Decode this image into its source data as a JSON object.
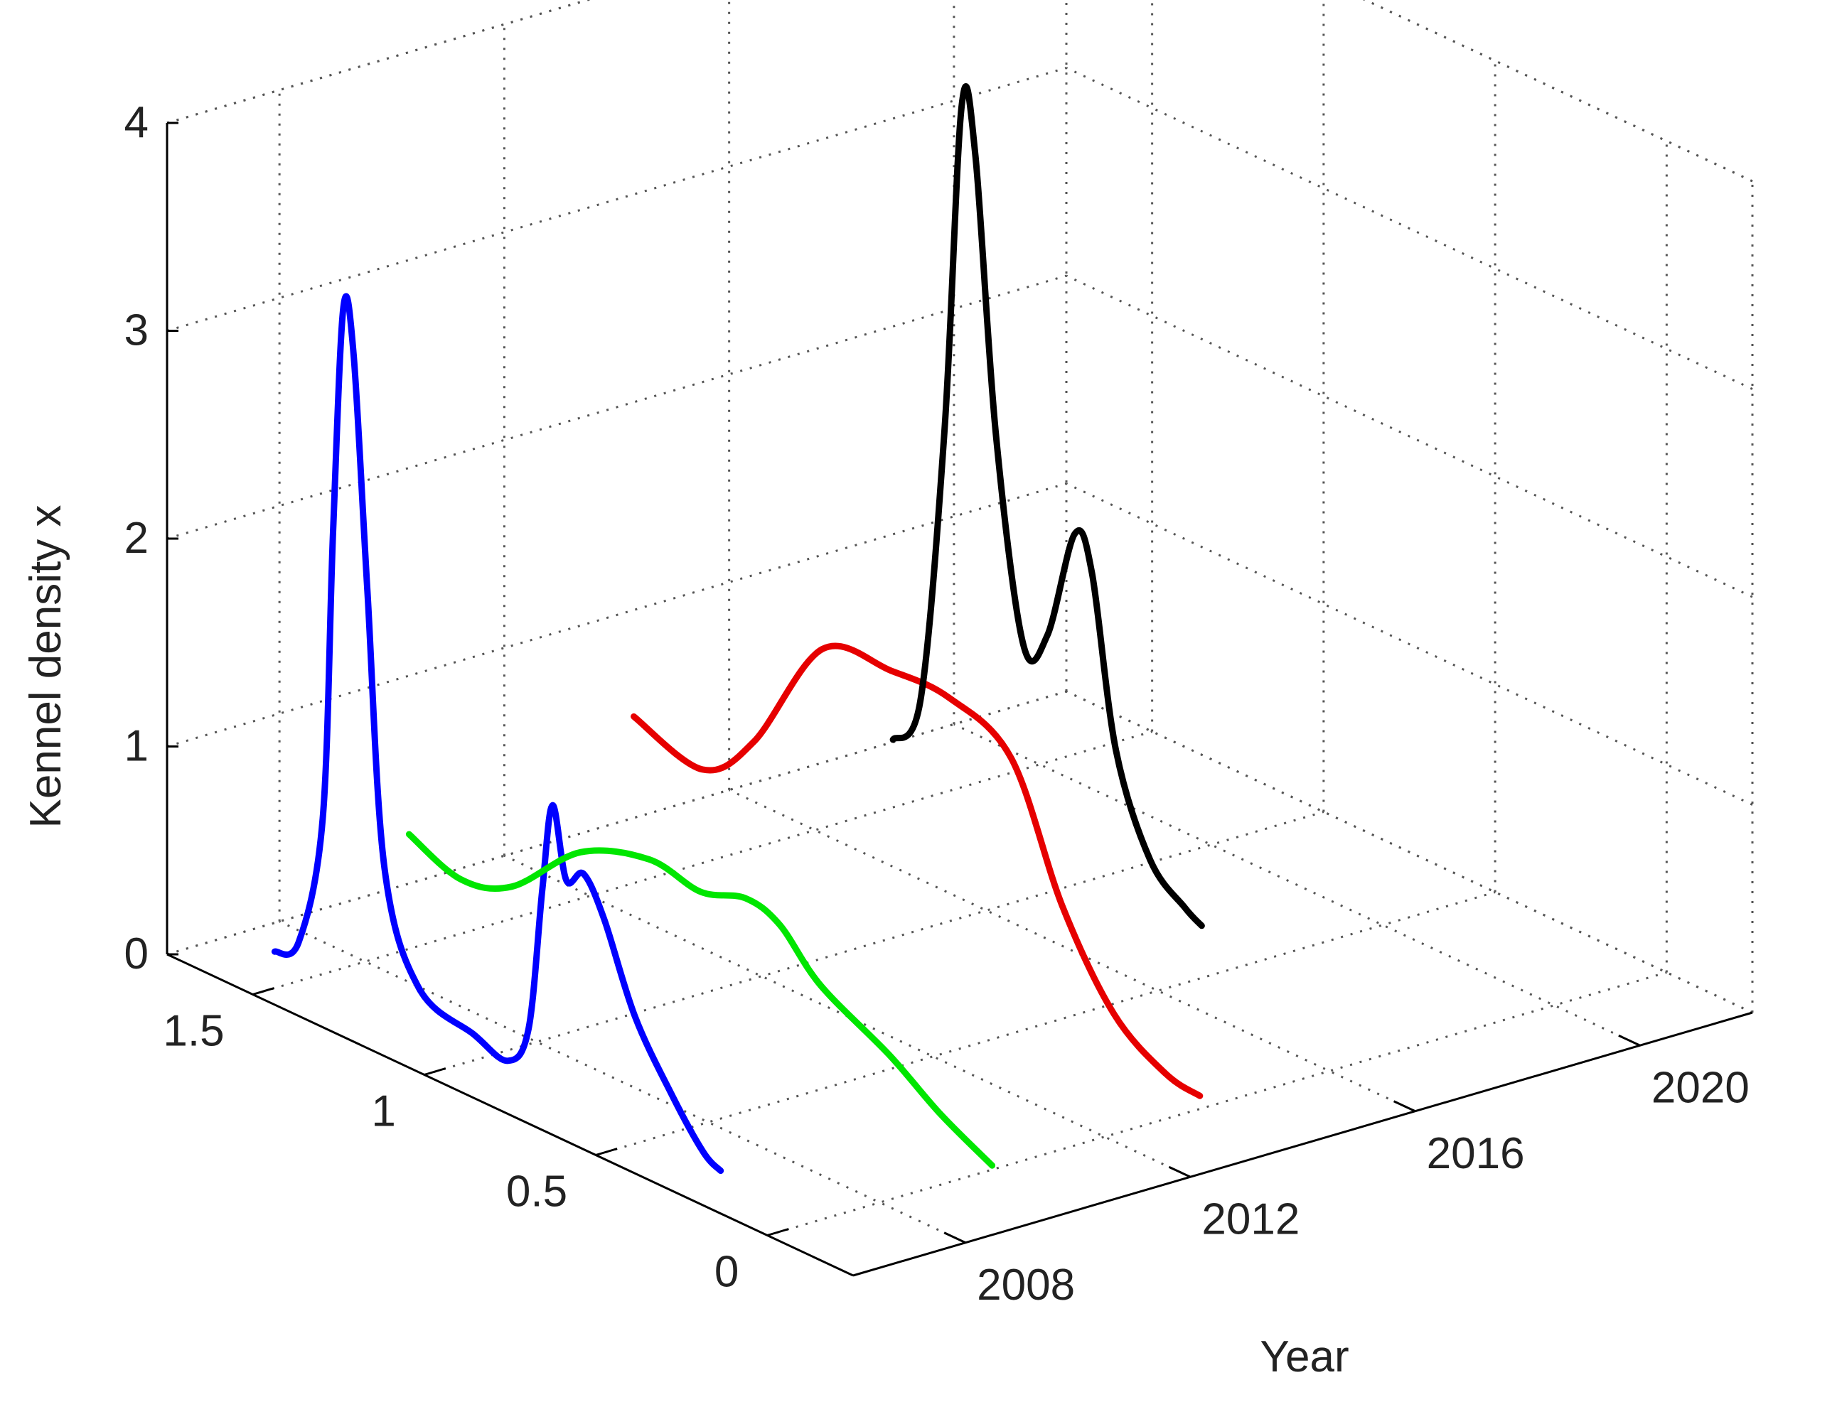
{
  "chart_data": {
    "type": "line",
    "projection": "3d",
    "zlabel": "Kennel density x",
    "ylabel": "Year",
    "xlabel": "",
    "x_ticks": [
      0,
      0.5,
      1,
      1.5
    ],
    "y_ticks": [
      2008,
      2012,
      2016,
      2020
    ],
    "z_ticks": [
      0,
      1,
      2,
      3,
      4
    ],
    "xlim": [
      -0.25,
      1.75
    ],
    "ylim": [
      2006,
      2022
    ],
    "zlim": [
      0,
      4
    ],
    "grid": true,
    "series": [
      {
        "year": 2007,
        "color": "#0000ff",
        "points": [
          [
            1.6,
            0.05
          ],
          [
            1.53,
            0.15
          ],
          [
            1.46,
            0.8
          ],
          [
            1.43,
            2.2
          ],
          [
            1.4,
            3.3
          ],
          [
            1.37,
            3.1
          ],
          [
            1.33,
            2.0
          ],
          [
            1.28,
            0.7
          ],
          [
            1.18,
            0.2
          ],
          [
            1.02,
            0.1
          ],
          [
            0.92,
            0.05
          ],
          [
            0.86,
            0.25
          ],
          [
            0.82,
            0.95
          ],
          [
            0.79,
            1.38
          ],
          [
            0.75,
            1.05
          ],
          [
            0.7,
            1.12
          ],
          [
            0.64,
            0.95
          ],
          [
            0.55,
            0.55
          ],
          [
            0.44,
            0.25
          ],
          [
            0.35,
            0.05
          ],
          [
            0.3,
            0.0
          ]
        ]
      },
      {
        "year": 2010,
        "color": "#00e600",
        "points": [
          [
            1.7,
            0.3
          ],
          [
            1.55,
            0.2
          ],
          [
            1.4,
            0.28
          ],
          [
            1.2,
            0.6
          ],
          [
            1.0,
            0.72
          ],
          [
            0.85,
            0.68
          ],
          [
            0.72,
            0.75
          ],
          [
            0.62,
            0.7
          ],
          [
            0.5,
            0.5
          ],
          [
            0.3,
            0.32
          ],
          [
            0.15,
            0.15
          ],
          [
            0.0,
            0.02
          ]
        ]
      },
      {
        "year": 2014,
        "color": "#e60000",
        "points": [
          [
            1.7,
            0.55
          ],
          [
            1.5,
            0.45
          ],
          [
            1.35,
            0.7
          ],
          [
            1.15,
            1.3
          ],
          [
            0.95,
            1.35
          ],
          [
            0.78,
            1.35
          ],
          [
            0.6,
            1.2
          ],
          [
            0.45,
            0.6
          ],
          [
            0.3,
            0.2
          ],
          [
            0.15,
            0.03
          ],
          [
            0.05,
            0.0
          ]
        ]
      },
      {
        "year": 2018,
        "color": "#000000",
        "points": [
          [
            1.6,
            0.2
          ],
          [
            1.52,
            0.45
          ],
          [
            1.45,
            1.8
          ],
          [
            1.4,
            3.4
          ],
          [
            1.36,
            3.2
          ],
          [
            1.3,
            1.9
          ],
          [
            1.22,
            0.95
          ],
          [
            1.15,
            1.05
          ],
          [
            1.07,
            1.6
          ],
          [
            1.02,
            1.45
          ],
          [
            0.95,
            0.65
          ],
          [
            0.85,
            0.2
          ],
          [
            0.75,
            0.05
          ],
          [
            0.7,
            0.0
          ]
        ]
      }
    ]
  }
}
